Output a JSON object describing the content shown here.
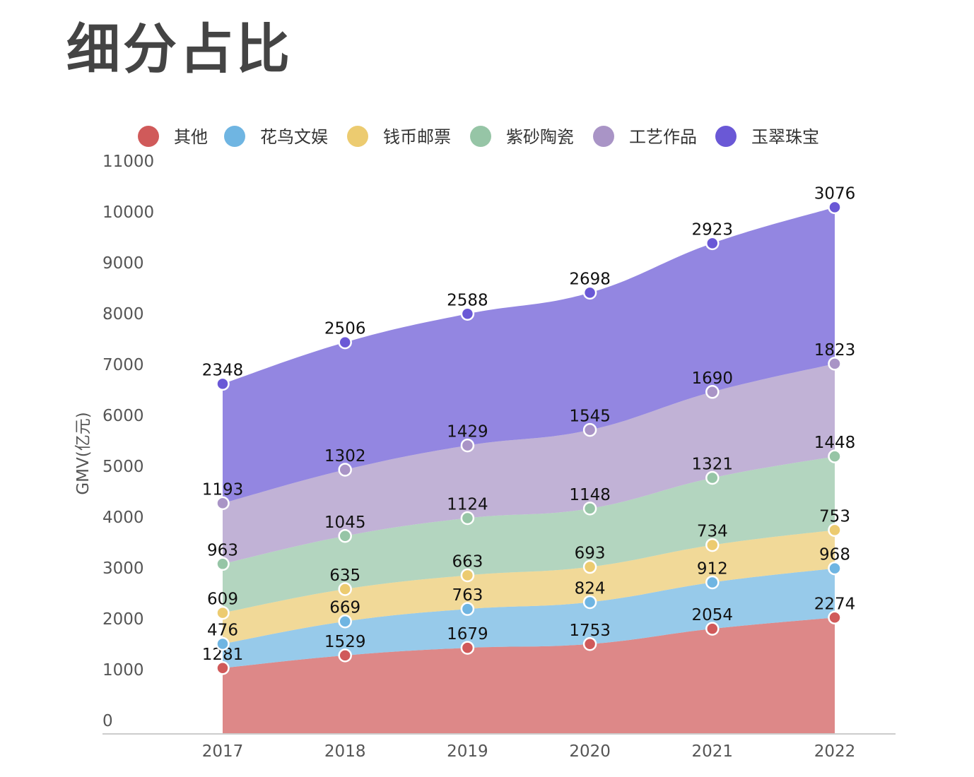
{
  "title": "细分占比",
  "chart_data": {
    "type": "area",
    "stacked": true,
    "title": "细分占比",
    "xlabel": "",
    "ylabel": "GMV(亿元)",
    "ylim": [
      0,
      11000
    ],
    "yticks": [
      0,
      1000,
      2000,
      3000,
      4000,
      5000,
      6000,
      7000,
      8000,
      9000,
      10000,
      11000
    ],
    "categories": [
      "2017",
      "2018",
      "2019",
      "2020",
      "2021",
      "2022"
    ],
    "legend_position": "top",
    "grid": false,
    "series": [
      {
        "name": "其他",
        "color": "#d05a5a",
        "values": [
          1281,
          1529,
          1679,
          1753,
          2054,
          2274
        ]
      },
      {
        "name": "花鸟文娱",
        "color": "#6fb5e2",
        "values": [
          476,
          669,
          763,
          824,
          912,
          968
        ]
      },
      {
        "name": "钱币邮票",
        "color": "#eccb70",
        "values": [
          609,
          635,
          663,
          693,
          734,
          753
        ]
      },
      {
        "name": "紫砂陶瓷",
        "color": "#96c5a6",
        "values": [
          963,
          1045,
          1124,
          1148,
          1321,
          1448
        ]
      },
      {
        "name": "工艺作品",
        "color": "#a994c6",
        "values": [
          1193,
          1302,
          1429,
          1545,
          1690,
          1823
        ]
      },
      {
        "name": "玉翠珠宝",
        "color": "#6a58d6",
        "values": [
          2348,
          2506,
          2588,
          2698,
          2923,
          3076
        ]
      }
    ]
  }
}
